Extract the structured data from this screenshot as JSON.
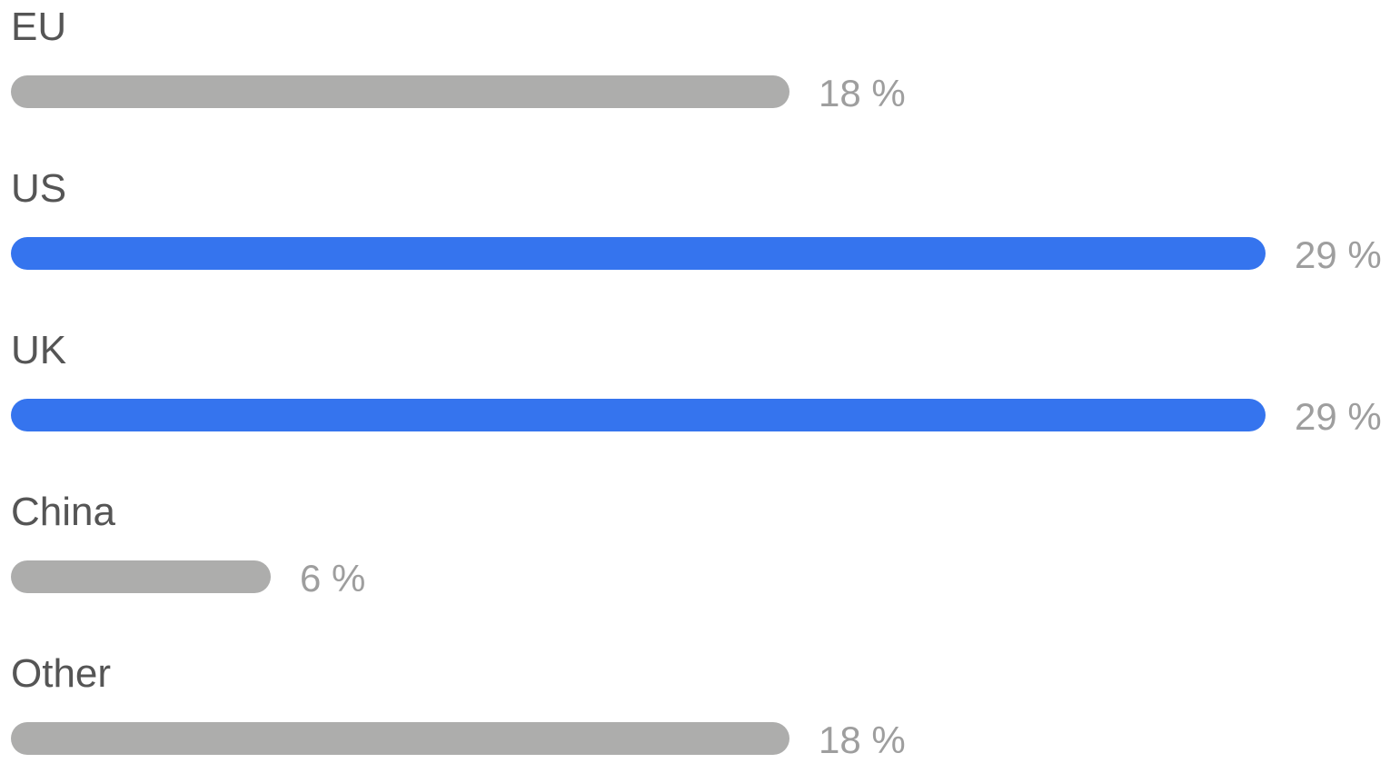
{
  "colors": {
    "default_bar": "#adadac",
    "highlight_bar": "#3574ee",
    "label_text": "#555555",
    "value_text": "#9e9e9e"
  },
  "chart_data": {
    "type": "bar",
    "orientation": "horizontal",
    "categories": [
      "EU",
      "US",
      "UK",
      "China",
      "Other"
    ],
    "values": [
      18,
      29,
      29,
      6,
      18
    ],
    "value_labels": [
      "18 %",
      "29 %",
      "29 %",
      "6 %",
      "18 %"
    ],
    "highlighted": [
      false,
      true,
      true,
      false,
      false
    ],
    "unit": "%",
    "title": "",
    "xlabel": "",
    "ylabel": "",
    "grid": false,
    "legend": "none"
  }
}
